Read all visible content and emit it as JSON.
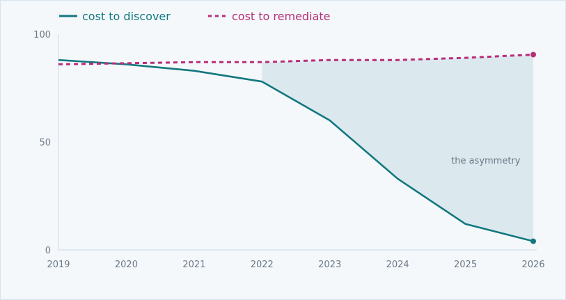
{
  "chart_data": {
    "type": "line",
    "title": "",
    "xlabel": "",
    "ylabel": "",
    "x": [
      2019,
      2020,
      2021,
      2022,
      2023,
      2024,
      2025,
      2026
    ],
    "x_tick_labels": [
      "2019",
      "2020",
      "2021",
      "2022",
      "2023",
      "2024",
      "2025",
      "2026"
    ],
    "y_ticks": [
      0,
      50,
      100
    ],
    "y_tick_labels": [
      "0",
      "50",
      "100"
    ],
    "xlim": [
      2019,
      2026
    ],
    "ylim": [
      0,
      100
    ],
    "grid": false,
    "legend_position": "top-left",
    "series": [
      {
        "name": "cost to discover",
        "color": "#12777f",
        "style": "solid",
        "values": [
          88,
          86,
          83,
          78,
          60,
          33,
          12,
          4
        ]
      },
      {
        "name": "cost to remediate",
        "color": "#b72e78",
        "style": "dashed",
        "values": [
          86,
          86.5,
          87,
          87,
          88,
          88,
          89,
          90.5
        ]
      }
    ],
    "shaded_region": {
      "between": [
        "cost to discover",
        "cost to remediate"
      ],
      "from_x": 2022,
      "to_x": 2026,
      "color": "#dbe9ef"
    },
    "annotation": {
      "text": "the asymmetry",
      "x": 2025.3,
      "y": 40
    }
  }
}
